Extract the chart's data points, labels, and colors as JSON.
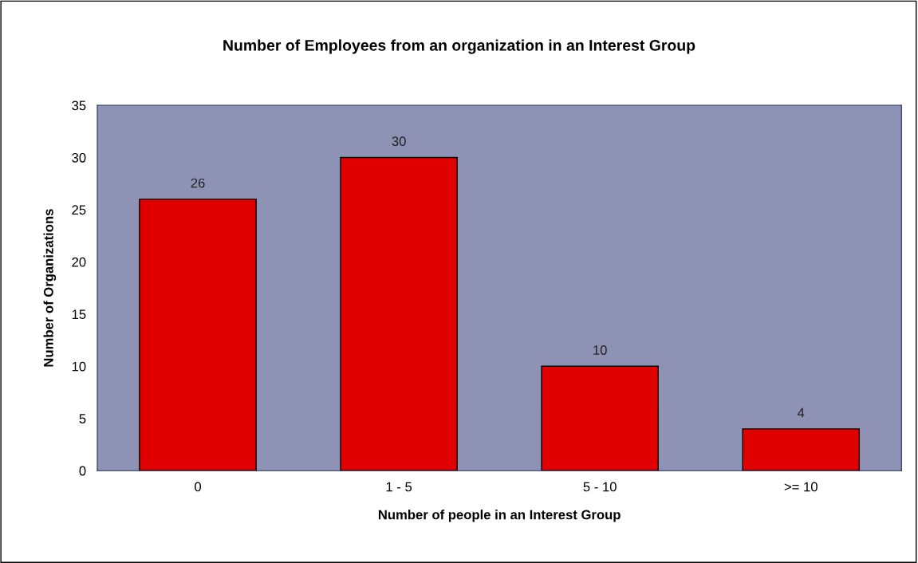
{
  "chart_data": {
    "type": "bar",
    "title": "Number of Employees from an organization in an Interest Group",
    "xlabel": "Number of people in an Interest Group",
    "ylabel": "Number of Organizations",
    "categories": [
      "0",
      "1 - 5",
      "5 - 10",
      ">= 10"
    ],
    "values": [
      26,
      30,
      10,
      4
    ],
    "color": "#e00000",
    "ylim": [
      0,
      35
    ],
    "yticks": [
      0,
      5,
      10,
      15,
      20,
      25,
      30,
      35
    ],
    "data_labels": true
  }
}
